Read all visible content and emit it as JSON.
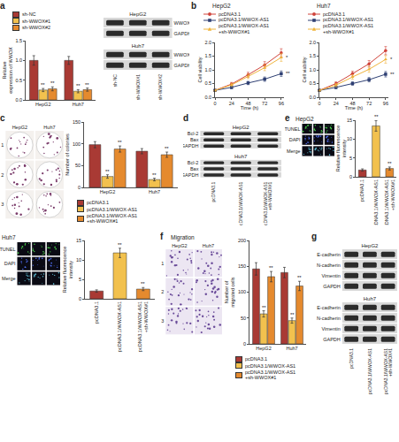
{
  "chart_data": [
    {
      "panel": "a",
      "type": "bar",
      "y_label": "Relative expression of WWOX",
      "categories": [
        "HepG2",
        "Huh7"
      ],
      "series": [
        {
          "name": "sh-NC",
          "color": "#a93a34",
          "values": [
            1.0,
            1.0
          ],
          "errors": [
            0.12,
            0.1
          ],
          "significance": [
            null,
            null
          ]
        },
        {
          "name": "sh-WWOX#1",
          "color": "#f2c14e",
          "values": [
            0.25,
            0.22
          ],
          "errors": [
            0.04,
            0.04
          ],
          "significance": [
            "**",
            "**"
          ]
        },
        {
          "name": "sh-WWOX#2",
          "color": "#e58a2e",
          "values": [
            0.28,
            0.26
          ],
          "errors": [
            0.05,
            0.04
          ],
          "significance": [
            "**",
            "**"
          ]
        }
      ],
      "ylim": [
        0,
        1.5
      ],
      "yticks": [
        {
          "value": 0,
          "label": "0.0"
        },
        0.5,
        {
          "value": 1,
          "label": "1.0"
        },
        1.5
      ],
      "legend": "top"
    },
    {
      "panel": "b",
      "type": "line",
      "title": "HepG2",
      "x_label": "Time (h)",
      "y_label": "Cell viability",
      "x": [
        0,
        24,
        48,
        72,
        96
      ],
      "series": [
        {
          "name": "pcDNA3.1",
          "color": "#d0433a",
          "marker": "circle",
          "values": [
            0.25,
            0.48,
            0.82,
            1.18,
            1.62
          ],
          "errors": [
            0.03,
            0.06,
            0.09,
            0.12,
            0.15
          ],
          "significance": [
            null,
            null,
            null,
            null,
            null
          ]
        },
        {
          "name": "pcDNA3.1/WWOX-AS1",
          "color": "#2e3f73",
          "marker": "square",
          "values": [
            0.25,
            0.36,
            0.52,
            0.66,
            0.86
          ],
          "errors": [
            0.03,
            0.05,
            0.06,
            0.08,
            0.1
          ],
          "significance": [
            null,
            null,
            null,
            null,
            "**"
          ]
        },
        {
          "name": "pcDNA3.1/WWOX-AS1 +sh-WWOX#1",
          "color": "#f0b43c",
          "marker": "triangle-up",
          "values": [
            0.25,
            0.45,
            0.76,
            1.08,
            1.45
          ],
          "errors": [
            0.03,
            0.06,
            0.08,
            0.11,
            0.14
          ],
          "significance": [
            null,
            null,
            null,
            null,
            "*"
          ]
        }
      ],
      "xlim": [
        0,
        100
      ],
      "xticks": [
        0,
        24,
        48,
        72,
        96
      ],
      "ylim": [
        0,
        2
      ],
      "yticks": [
        {
          "value": 0,
          "label": "0.0"
        },
        0.5,
        {
          "value": 1,
          "label": "1.0"
        },
        1.5,
        {
          "value": 2,
          "label": "2.0"
        }
      ],
      "legend": "top"
    },
    {
      "type": "line",
      "title": "Huh7",
      "x_label": "Time (h)",
      "y_label": "Cell viability",
      "x": [
        0,
        24,
        48,
        72,
        96
      ],
      "series": [
        {
          "name": "pcDNA3.1",
          "color": "#d0433a",
          "marker": "circle",
          "values": [
            0.25,
            0.5,
            0.86,
            1.22,
            1.7
          ],
          "errors": [
            0.03,
            0.06,
            0.09,
            0.12,
            0.15
          ],
          "significance": [
            null,
            null,
            null,
            null,
            null
          ]
        },
        {
          "name": "pcDNA3.1/WWOX-AS1",
          "color": "#2e3f73",
          "marker": "square",
          "values": [
            0.25,
            0.36,
            0.5,
            0.64,
            0.84
          ],
          "errors": [
            0.03,
            0.05,
            0.06,
            0.08,
            0.1
          ],
          "significance": [
            null,
            null,
            null,
            null,
            "**"
          ]
        },
        {
          "name": "pcDNA3.1/WWOX-AS1 +sh-WWOX#1",
          "color": "#f0b43c",
          "marker": "triangle-up",
          "values": [
            0.25,
            0.44,
            0.74,
            1.02,
            1.38
          ],
          "errors": [
            0.03,
            0.06,
            0.08,
            0.11,
            0.14
          ],
          "significance": [
            null,
            null,
            null,
            null,
            "*"
          ]
        }
      ],
      "xlim": [
        0,
        100
      ],
      "xticks": [
        0,
        24,
        48,
        72,
        96
      ],
      "ylim": [
        0,
        2
      ],
      "yticks": [
        {
          "value": 0,
          "label": "0.0"
        },
        0.5,
        {
          "value": 1,
          "label": "1.0"
        },
        1.5,
        {
          "value": 2,
          "label": "2.0"
        }
      ],
      "legend": "top"
    },
    {
      "type": "bar",
      "y_label": "Number of colonies",
      "categories": [
        "HepG2",
        "Huh7"
      ],
      "series": [
        {
          "name": "pcDNA3.1",
          "color": "#a93a34",
          "values": [
            98,
            83
          ],
          "errors": [
            7,
            6
          ],
          "significance": [
            null,
            null
          ]
        },
        {
          "name": "pcDNA3.1/WWOX-AS1",
          "color": "#f2c14e",
          "values": [
            25,
            18
          ],
          "errors": [
            4,
            3
          ],
          "significance": [
            "**",
            "**"
          ]
        },
        {
          "name": "pcDNA3.1/WWOX-AS1 +sh-WWOX#1",
          "color": "#e58a2e",
          "values": [
            88,
            75
          ],
          "errors": [
            7,
            6
          ],
          "significance": [
            "**",
            "**"
          ]
        }
      ],
      "ylim": [
        0,
        150
      ],
      "yticks": [
        0,
        50,
        100,
        150
      ],
      "legend": "bottom"
    },
    {
      "type": "bar",
      "y_label": "Relative fluorescence intensity",
      "categories": [
        "pcDNA3.1",
        "pcDNA3.1/WWOX-AS1",
        "pcDNA3.1/WWOX-AS1 +sh-WWOX#1"
      ],
      "values": [
        1.8,
        13.5,
        2.2
      ],
      "errors": [
        0.3,
        1.4,
        0.4
      ],
      "significance": [
        null,
        "**",
        "**"
      ],
      "colors": [
        "#a93a34",
        "#f2c14e",
        "#e58a2e"
      ],
      "ylim": [
        0,
        15
      ],
      "yticks": [
        0,
        5,
        10,
        15
      ]
    },
    {
      "type": "bar",
      "y_label": "Relative fluorescence intensity",
      "categories": [
        "pcDNA3.1",
        "pcDNA3.1/WWOX-AS1",
        "pcDNA3.1/WWOX-AS1 +sh-WWOX#1"
      ],
      "values": [
        2.0,
        11.8,
        2.5
      ],
      "errors": [
        0.3,
        1.2,
        0.4
      ],
      "significance": [
        null,
        "**",
        "**"
      ],
      "colors": [
        "#a93a34",
        "#f2c14e",
        "#e58a2e"
      ],
      "ylim": [
        0,
        15
      ],
      "yticks": [
        0,
        5,
        10,
        15
      ]
    },
    {
      "type": "bar",
      "y_label": "Number of migrated cells",
      "categories": [
        "HepG2",
        "Huh7"
      ],
      "series": [
        {
          "name": "pcDNA3.1",
          "color": "#a93a34",
          "values": [
            145,
            138
          ],
          "errors": [
            12,
            10
          ],
          "significance": [
            null,
            null
          ]
        },
        {
          "name": "pcDNA3.1/WWOX-AS1",
          "color": "#f2c14e",
          "values": [
            58,
            45
          ],
          "errors": [
            6,
            5
          ],
          "significance": [
            "**",
            "**"
          ]
        },
        {
          "name": "pcDNA3.1/WWOX-AS1 +sh-WWOX#1",
          "color": "#e58a2e",
          "values": [
            130,
            112
          ],
          "errors": [
            10,
            9
          ],
          "significance": [
            "**",
            "**"
          ]
        }
      ],
      "ylim": [
        0,
        200
      ],
      "yticks": [
        0,
        50,
        100,
        150,
        200
      ],
      "legend": "bottom"
    }
  ],
  "figure": {
    "blots": [
      {
        "lanes": [
          "sh-NC",
          "sh-WWOX#1",
          "sh-WWOX#2"
        ],
        "groups": [
          {
            "title": "HepG2",
            "rows": [
              "WWOX",
              "GAPDH"
            ]
          },
          {
            "title": "Huh7",
            "rows": [
              "WWOX",
              "GAPDH"
            ]
          }
        ]
      },
      {
        "panel": "d",
        "lanes": [
          "pcDNA3.1",
          "pcDNA3.1/WWOX-AS1",
          "pcDNA3.1/WWOX-AS1 +sh-WWOX#1"
        ],
        "groups": [
          {
            "title": "HepG2",
            "rows": [
              "Bcl-2",
              "Bax",
              "GAPDH"
            ]
          },
          {
            "title": "Huh7",
            "rows": [
              "Bcl-2",
              "Bax",
              "GAPDH"
            ]
          }
        ]
      },
      {
        "panel": "g",
        "lanes": [
          "pcDNA3.1",
          "pcDNA3.1/WWOX-AS1",
          "pcDNA3.1/WWOX-AS1 +sh-WWOX#1"
        ],
        "groups": [
          {
            "title": "HepG2",
            "rows": [
              "E-cadherin",
              "N-cadherin",
              "Vimentin",
              "GAPDH"
            ]
          },
          {
            "title": "Huh7",
            "rows": [
              "E-cadherin",
              "N-cadherin",
              "Vimentin",
              "GAPDH"
            ]
          }
        ]
      }
    ],
    "images": [
      {
        "panel": "c",
        "columns": [
          "HepG2",
          "Huh7"
        ],
        "rows": [
          "1",
          "2",
          "3"
        ]
      },
      {
        "panel": "e",
        "title": "HepG2",
        "rows": [
          "TUNEL",
          "DAPI",
          "Merge"
        ]
      },
      {
        "title": "Huh7",
        "rows": [
          "TUNEL",
          "DAPI",
          "Merge"
        ]
      },
      {
        "panel": "f",
        "title": "Migration",
        "columns": [
          "HepG2",
          "Huh7"
        ],
        "rows": [
          "1",
          "2",
          "3"
        ]
      }
    ]
  }
}
